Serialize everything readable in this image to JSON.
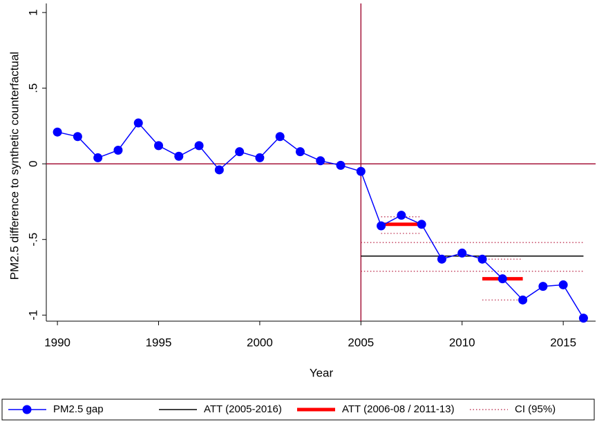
{
  "chart_data": {
    "type": "line",
    "x_label": "Year",
    "y_label": "PM2.5 difference to synthetic counterfactual",
    "x": [
      1990,
      1991,
      1992,
      1993,
      1994,
      1995,
      1996,
      1997,
      1998,
      1999,
      2000,
      2001,
      2002,
      2003,
      2004,
      2005,
      2006,
      2007,
      2008,
      2009,
      2010,
      2011,
      2012,
      2013,
      2014,
      2015,
      2016
    ],
    "series": [
      {
        "name": "PM2.5 gap",
        "color": "#0000ff",
        "values": [
          0.21,
          0.18,
          0.04,
          0.09,
          0.27,
          0.12,
          0.05,
          0.12,
          -0.04,
          0.08,
          0.04,
          0.18,
          0.08,
          0.02,
          -0.01,
          -0.05,
          -0.41,
          -0.34,
          -0.4,
          -0.63,
          -0.59,
          -0.63,
          -0.76,
          -0.9,
          -0.81,
          -0.8,
          -1.02
        ]
      }
    ],
    "overlays": [
      {
        "name": "ATT (2005-2016)",
        "color": "#000000",
        "style": "solid",
        "segments": [
          {
            "x": [
              2005,
              2016
            ],
            "y": -0.61
          }
        ]
      },
      {
        "name": "ATT (2006-08 / 2011-13)",
        "color": "#ff0000",
        "style": "thick",
        "segments": [
          {
            "x": [
              2006,
              2008
            ],
            "y": -0.4
          },
          {
            "x": [
              2011,
              2013
            ],
            "y": -0.76
          }
        ]
      },
      {
        "name": "CI (95%)",
        "color": "#b5163a",
        "style": "dotted",
        "segments": [
          {
            "x": [
              2005,
              2016
            ],
            "y": -0.52
          },
          {
            "x": [
              2005,
              2016
            ],
            "y": -0.71
          },
          {
            "x": [
              2006,
              2008
            ],
            "y": -0.35
          },
          {
            "x": [
              2006,
              2008
            ],
            "y": -0.46
          },
          {
            "x": [
              2011,
              2013
            ],
            "y": -0.63
          },
          {
            "x": [
              2011,
              2013
            ],
            "y": -0.9
          }
        ]
      }
    ],
    "vlines": [
      2005
    ],
    "hlines": [
      0
    ],
    "ref_color": "#a5143a",
    "xlim": [
      1989.45,
      2016.6
    ],
    "ylim": [
      -1.04,
      1.06
    ],
    "xticks": [
      1990,
      1995,
      2000,
      2005,
      2010,
      2015
    ],
    "yticks": [
      -1,
      {
        "value": -0.5,
        "label": "-.5"
      },
      0,
      {
        "value": 0.5,
        "label": ".5"
      },
      1
    ]
  }
}
